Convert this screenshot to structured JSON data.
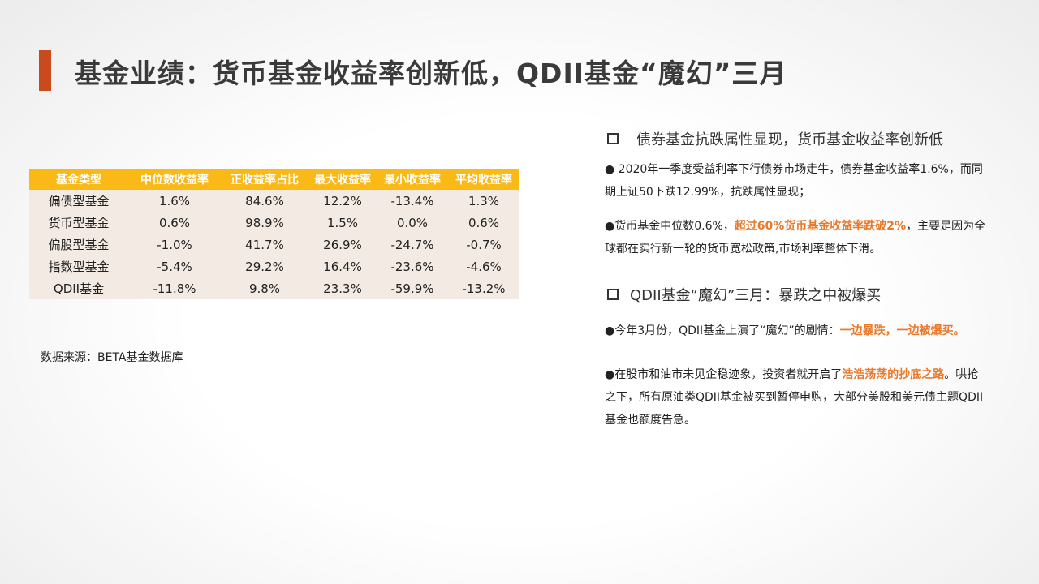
{
  "title": "基金业绩：货币基金收益率创新低，QDII基金“魔幻”三月",
  "colors": {
    "accent_bar": "#c94a1c",
    "table_header_bg": "#fbb917",
    "table_body_bg": "#f3ebe3",
    "highlight": "#e8782a"
  },
  "table": {
    "headers": [
      "基金类型",
      "中位数收益率",
      "正收益率占比",
      "最大收益率",
      "最小收益率",
      "平均收益率"
    ],
    "rows": [
      [
        "偏债型基金",
        "1.6%",
        "84.6%",
        "12.2%",
        "-13.4%",
        "1.3%"
      ],
      [
        "货币型基金",
        "0.6%",
        "98.9%",
        "1.5%",
        "0.0%",
        "0.6%"
      ],
      [
        "偏股型基金",
        "-1.0%",
        "41.7%",
        "26.9%",
        "-24.7%",
        "-0.7%"
      ],
      [
        "指数型基金",
        "-5.4%",
        "29.2%",
        "16.4%",
        "-23.6%",
        "-4.6%"
      ],
      [
        "QDII基金",
        "-11.8%",
        "9.8%",
        "23.3%",
        "-59.9%",
        "-13.2%"
      ]
    ]
  },
  "source": "数据来源：BETA基金数据库",
  "right": {
    "section1": {
      "heading": "债券基金抗跌属性显现，货币基金收益率创新低",
      "p1": "● 2020年一季度受益利率下行债券市场走牛，债券基金收益率1.6%，而同期上证50下跌12.99%，抗跌属性显现；",
      "p2_pre": "●货币基金中位数0.6%，",
      "p2_hl": "超过60%货币基金收益率跌破2%",
      "p2_post": "，主要是因为全球都在实行新一轮的货币宽松政策,市场利率整体下滑。"
    },
    "section2": {
      "heading": "QDII基金“魔幻”三月：暴跌之中被爆买",
      "p1_pre": "●今年3月份，QDII基金上演了“魔幻”的剧情：",
      "p1_hl": "一边暴跌，一边被爆买。",
      "p2_pre": "●在股市和油市未见企稳迹象，投资者就开启了",
      "p2_hl": "浩浩荡荡的抄底之路",
      "p2_post": "。哄抢之下，所有原油类QDII基金被买到暂停申购，大部分美股和美元债主题QDII基金也额度告急。"
    }
  }
}
